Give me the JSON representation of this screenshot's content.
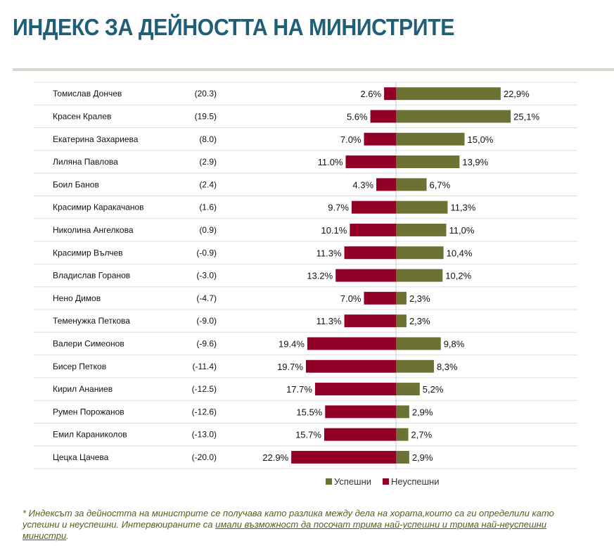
{
  "title": "ИНДЕКС ЗА ДЕЙНОСТТА НА МИНИСТРИТЕ",
  "chart_data": {
    "type": "bar",
    "orientation": "horizontal-diverging",
    "categories": [
      "Томислав Дончев",
      "Красен Кралев",
      "Екатерина Захариева",
      "Лиляна Павлова",
      "Боил Банов",
      "Красимир Каракачанов",
      "Николина Ангелкова",
      "Красимир Вълчев",
      "Владислав Горанов",
      "Нено Димов",
      "Теменужка Петкова",
      "Валери Симеонов",
      "Бисер Петков",
      "Кирил Ананиев",
      "Румен Порожанов",
      "Емил Караниколов",
      "Цецка Цачева"
    ],
    "index_labels": [
      "(20.3)",
      "(19.5)",
      "(8.0)",
      "(2.9)",
      "(2.4)",
      "(1.6)",
      "(0.9)",
      "(-0.9)",
      "(-3.0)",
      "(-4.7)",
      "(-9.0)",
      "(-9.6)",
      "(-11.4)",
      "(-12.5)",
      "(-12.6)",
      "(-13.0)",
      "(-20.0)"
    ],
    "series": [
      {
        "name": "Успешни",
        "color": "#6b7233",
        "values": [
          22.9,
          25.1,
          15.0,
          13.9,
          6.7,
          11.3,
          11.0,
          10.4,
          10.2,
          2.3,
          2.3,
          9.8,
          8.3,
          5.2,
          2.9,
          2.7,
          2.9
        ],
        "labels": [
          "22,9%",
          "25,1%",
          "15,0%",
          "13,9%",
          "6,7%",
          "11,3%",
          "11,0%",
          "10,4%",
          "10,2%",
          "2,3%",
          "2,3%",
          "9,8%",
          "8,3%",
          "5,2%",
          "2,9%",
          "2,7%",
          "2,9%"
        ]
      },
      {
        "name": "Неуспешни",
        "color": "#920027",
        "values": [
          2.6,
          5.6,
          7.0,
          11.0,
          4.3,
          9.7,
          10.1,
          11.3,
          13.2,
          7.0,
          11.3,
          19.4,
          19.7,
          17.7,
          15.5,
          15.7,
          22.9
        ],
        "labels": [
          "2.6%",
          "5.6%",
          "7.0%",
          "11.0%",
          "4.3%",
          "9.7%",
          "10.1%",
          "11.3%",
          "13.2%",
          "7.0%",
          "11.3%",
          "19.4%",
          "19.7%",
          "17.7%",
          "15.5%",
          "15.7%",
          "22.9%"
        ]
      }
    ],
    "legend_position": "bottom"
  },
  "note": {
    "text": "* Индексът за дейността на министрите се получава като разлика между дела на хората,които са ги определили като успешни и неуспешни. Интервюираните са ",
    "underlined": "имали възможност да посочат трима най-успешни и трима най-неуспешни министри",
    "end": "."
  }
}
